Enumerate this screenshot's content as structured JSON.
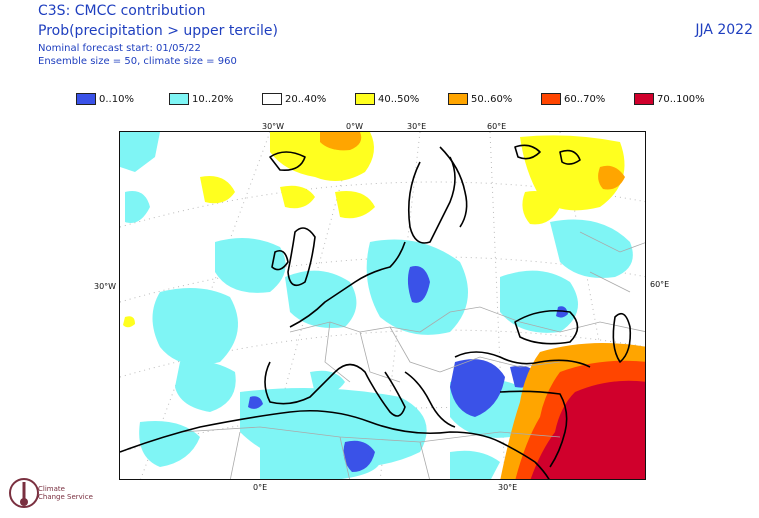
{
  "header": {
    "line1": "C3S: CMCC contribution",
    "line2": "Prob(precipitation > upper tercile)",
    "line3": "Nominal forecast start: 01/05/22",
    "line4": "Ensemble size = 50, climate size = 960"
  },
  "season": "JJA 2022",
  "legend": [
    {
      "label": "0..10%",
      "color": "#3a52e8"
    },
    {
      "label": "10..20%",
      "color": "#7ff5f5"
    },
    {
      "label": "20..40%",
      "color": "#ffffff"
    },
    {
      "label": "40..50%",
      "color": "#ffff1f"
    },
    {
      "label": "50..60%",
      "color": "#ffa500"
    },
    {
      "label": "60..70%",
      "color": "#ff4500"
    },
    {
      "label": "70..100%",
      "color": "#d0002c"
    }
  ],
  "axes": {
    "top": [
      "30°W",
      "0°W",
      "30°E",
      "60°E"
    ],
    "left": "30°W",
    "right": "60°E",
    "bottom": [
      "0°E",
      "30°E"
    ]
  },
  "logo": {
    "line1": "Climate",
    "line2": "Change Service"
  }
}
